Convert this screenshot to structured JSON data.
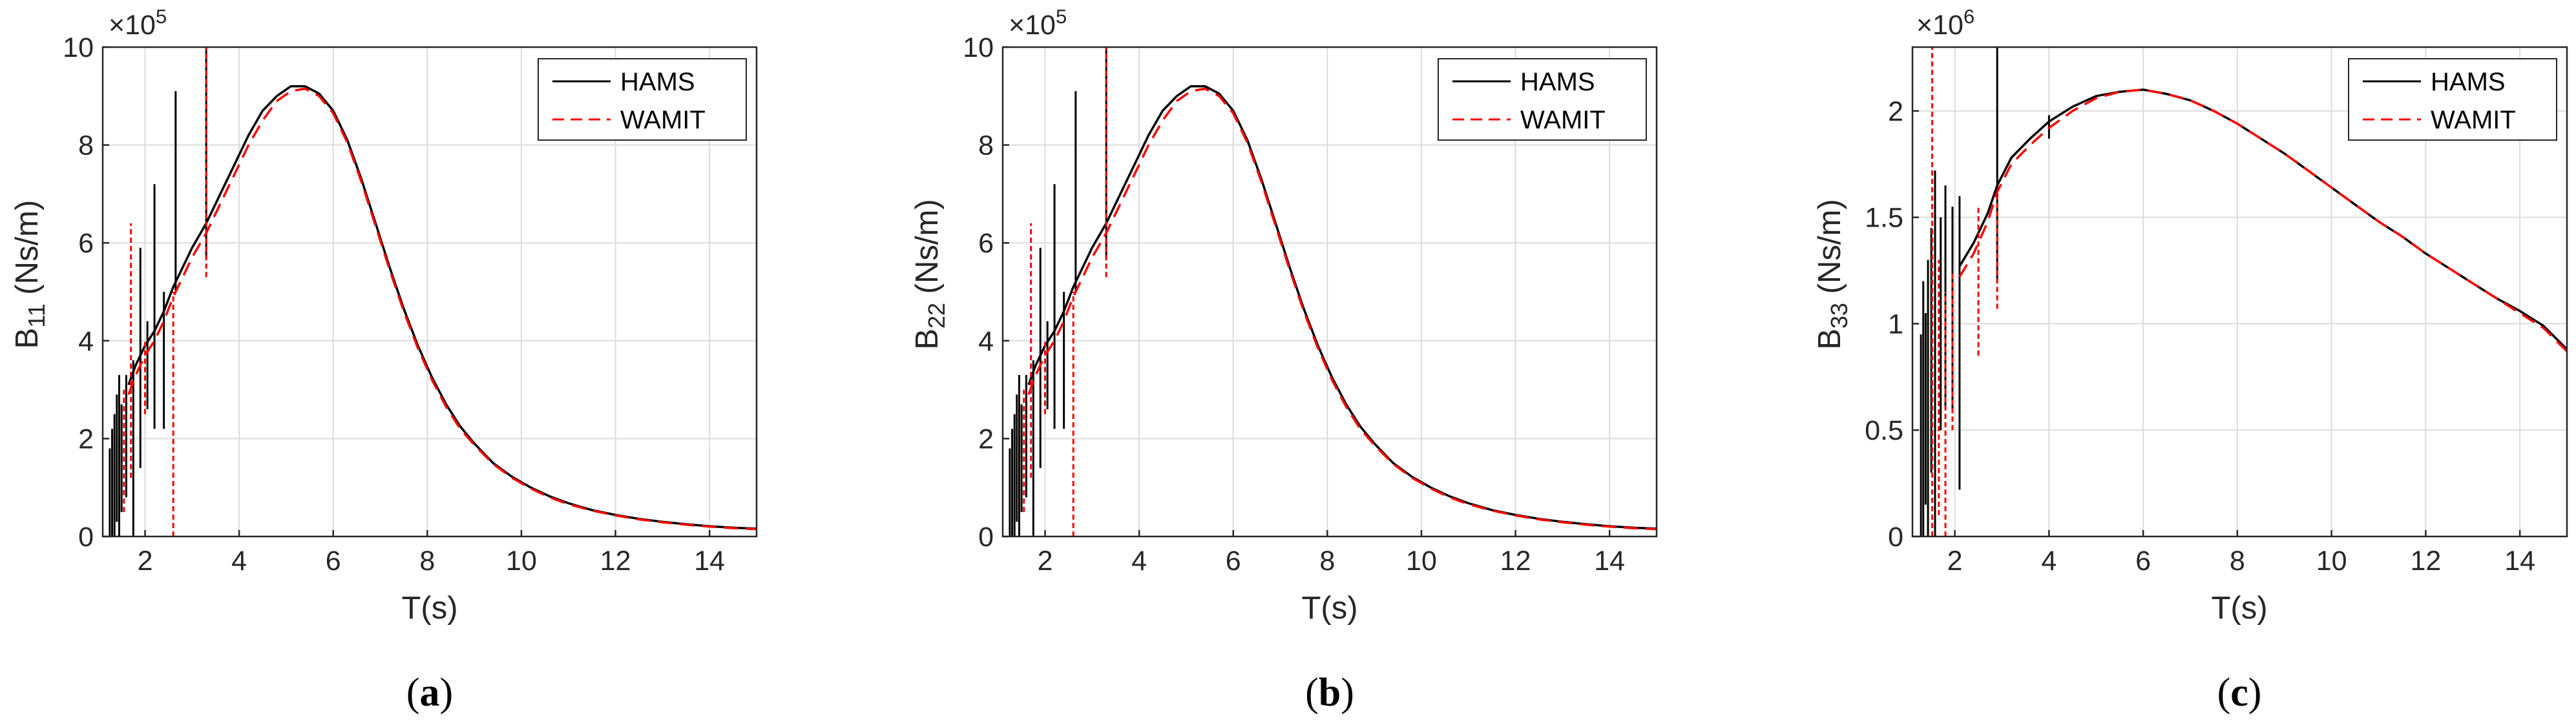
{
  "chart_data": [
    {
      "type": "line",
      "panel": "(a)",
      "caption_letter": "a",
      "ylabel_main": "B",
      "ylabel_sub": "11",
      "ylabel_unit": " (Ns/m)",
      "xlabel": "T(s)",
      "exponent_base": "×10",
      "exponent_power": "5",
      "xlim": [
        1.1,
        15
      ],
      "ylim": [
        0,
        10
      ],
      "xticks": [
        2,
        4,
        6,
        8,
        10,
        12,
        14
      ],
      "yticks": [
        0,
        2,
        4,
        6,
        8,
        10
      ],
      "ytick_labels": [
        "0",
        "2",
        "4",
        "6",
        "8",
        "10"
      ],
      "grid": true,
      "legend_position": "top-right",
      "series": [
        {
          "name": "HAMS",
          "color": "#000000",
          "dash": "solid",
          "x": [
            1.65,
            1.8,
            2.0,
            2.2,
            2.4,
            2.6,
            2.8,
            3.0,
            3.3,
            3.6,
            3.9,
            4.2,
            4.5,
            4.8,
            5.1,
            5.4,
            5.7,
            6.0,
            6.3,
            6.6,
            6.9,
            7.2,
            7.5,
            7.8,
            8.1,
            8.4,
            8.7,
            9.0,
            9.4,
            9.8,
            10.2,
            10.6,
            11.0,
            11.5,
            12.0,
            12.5,
            13.0,
            13.5,
            14.0,
            14.5,
            15.0
          ],
          "y": [
            3.1,
            3.5,
            3.9,
            4.2,
            4.6,
            5.1,
            5.5,
            5.9,
            6.4,
            7.0,
            7.6,
            8.2,
            8.7,
            9.0,
            9.2,
            9.2,
            9.05,
            8.7,
            8.1,
            7.3,
            6.4,
            5.5,
            4.65,
            3.9,
            3.25,
            2.7,
            2.25,
            1.9,
            1.5,
            1.22,
            1.0,
            0.82,
            0.68,
            0.54,
            0.44,
            0.36,
            0.3,
            0.25,
            0.21,
            0.18,
            0.16
          ],
          "spikes": [
            {
              "x": 1.25,
              "low": 0.0,
              "high": 1.8
            },
            {
              "x": 1.3,
              "low": 0.0,
              "high": 2.2
            },
            {
              "x": 1.35,
              "low": 0.0,
              "high": 2.5
            },
            {
              "x": 1.4,
              "low": 0.3,
              "high": 2.9
            },
            {
              "x": 1.45,
              "low": 0.0,
              "high": 3.3
            },
            {
              "x": 1.5,
              "low": 0.5,
              "high": 2.7
            },
            {
              "x": 1.6,
              "low": 0.8,
              "high": 3.3
            },
            {
              "x": 1.75,
              "low": 0.0,
              "high": 3.6
            },
            {
              "x": 1.9,
              "low": 1.4,
              "high": 5.9
            },
            {
              "x": 2.05,
              "low": 2.6,
              "high": 4.4
            },
            {
              "x": 2.2,
              "low": 2.2,
              "high": 7.2
            },
            {
              "x": 2.4,
              "low": 2.2,
              "high": 5.0
            },
            {
              "x": 2.65,
              "low": 5.0,
              "high": 9.1
            },
            {
              "x": 3.3,
              "low": 5.7,
              "high": 10.0
            }
          ]
        },
        {
          "name": "WAMIT",
          "color": "#ff0000",
          "dash": "dashed",
          "x": [
            1.65,
            1.8,
            2.0,
            2.2,
            2.4,
            2.6,
            2.8,
            3.0,
            3.3,
            3.6,
            3.9,
            4.2,
            4.5,
            4.8,
            5.1,
            5.4,
            5.7,
            6.0,
            6.3,
            6.6,
            6.9,
            7.2,
            7.5,
            7.8,
            8.1,
            8.4,
            8.7,
            9.0,
            9.4,
            9.8,
            10.2,
            10.6,
            11.0,
            11.5,
            12.0,
            12.5,
            13.0,
            13.5,
            14.0,
            14.5,
            15.0
          ],
          "y": [
            2.9,
            3.3,
            3.7,
            4.0,
            4.4,
            4.9,
            5.3,
            5.7,
            6.2,
            6.8,
            7.4,
            8.0,
            8.5,
            8.9,
            9.1,
            9.15,
            9.0,
            8.65,
            8.05,
            7.25,
            6.35,
            5.45,
            4.6,
            3.85,
            3.2,
            2.65,
            2.2,
            1.87,
            1.48,
            1.2,
            0.98,
            0.8,
            0.66,
            0.53,
            0.43,
            0.35,
            0.29,
            0.24,
            0.2,
            0.17,
            0.15
          ],
          "spikes": [
            {
              "x": 1.55,
              "low": 0.5,
              "high": 3.0
            },
            {
              "x": 1.7,
              "low": 1.2,
              "high": 6.4
            },
            {
              "x": 2.0,
              "low": 2.5,
              "high": 4.0
            },
            {
              "x": 2.6,
              "low": 0.0,
              "high": 5.0
            },
            {
              "x": 3.3,
              "low": 5.3,
              "high": 10.0
            }
          ]
        }
      ]
    },
    {
      "type": "line",
      "panel": "(b)",
      "caption_letter": "b",
      "ylabel_main": "B",
      "ylabel_sub": "22",
      "ylabel_unit": " (Ns/m)",
      "xlabel": "T(s)",
      "exponent_base": "×10",
      "exponent_power": "5",
      "xlim": [
        1.1,
        15
      ],
      "ylim": [
        0,
        10
      ],
      "xticks": [
        2,
        4,
        6,
        8,
        10,
        12,
        14
      ],
      "yticks": [
        0,
        2,
        4,
        6,
        8,
        10
      ],
      "ytick_labels": [
        "0",
        "2",
        "4",
        "6",
        "8",
        "10"
      ],
      "grid": true,
      "legend_position": "top-right",
      "series": [
        {
          "name": "HAMS",
          "color": "#000000",
          "dash": "solid",
          "x": [
            1.65,
            1.8,
            2.0,
            2.2,
            2.4,
            2.6,
            2.8,
            3.0,
            3.3,
            3.6,
            3.9,
            4.2,
            4.5,
            4.8,
            5.1,
            5.4,
            5.7,
            6.0,
            6.3,
            6.6,
            6.9,
            7.2,
            7.5,
            7.8,
            8.1,
            8.4,
            8.7,
            9.0,
            9.4,
            9.8,
            10.2,
            10.6,
            11.0,
            11.5,
            12.0,
            12.5,
            13.0,
            13.5,
            14.0,
            14.5,
            15.0
          ],
          "y": [
            3.1,
            3.5,
            3.9,
            4.2,
            4.6,
            5.1,
            5.5,
            5.9,
            6.4,
            7.0,
            7.6,
            8.2,
            8.7,
            9.0,
            9.2,
            9.2,
            9.05,
            8.7,
            8.1,
            7.3,
            6.4,
            5.5,
            4.65,
            3.9,
            3.25,
            2.7,
            2.25,
            1.9,
            1.5,
            1.22,
            1.0,
            0.82,
            0.68,
            0.54,
            0.44,
            0.36,
            0.3,
            0.25,
            0.21,
            0.18,
            0.16
          ],
          "spikes": [
            {
              "x": 1.25,
              "low": 0.0,
              "high": 1.8
            },
            {
              "x": 1.3,
              "low": 0.0,
              "high": 2.2
            },
            {
              "x": 1.35,
              "low": 0.0,
              "high": 2.5
            },
            {
              "x": 1.4,
              "low": 0.3,
              "high": 2.9
            },
            {
              "x": 1.45,
              "low": 0.0,
              "high": 3.3
            },
            {
              "x": 1.5,
              "low": 0.5,
              "high": 2.7
            },
            {
              "x": 1.6,
              "low": 0.8,
              "high": 3.3
            },
            {
              "x": 1.75,
              "low": 0.0,
              "high": 3.6
            },
            {
              "x": 1.9,
              "low": 1.4,
              "high": 5.9
            },
            {
              "x": 2.05,
              "low": 2.6,
              "high": 4.4
            },
            {
              "x": 2.2,
              "low": 2.2,
              "high": 7.2
            },
            {
              "x": 2.4,
              "low": 2.2,
              "high": 5.0
            },
            {
              "x": 2.65,
              "low": 5.0,
              "high": 9.1
            },
            {
              "x": 3.3,
              "low": 5.7,
              "high": 10.0
            }
          ]
        },
        {
          "name": "WAMIT",
          "color": "#ff0000",
          "dash": "dashed",
          "x": [
            1.65,
            1.8,
            2.0,
            2.2,
            2.4,
            2.6,
            2.8,
            3.0,
            3.3,
            3.6,
            3.9,
            4.2,
            4.5,
            4.8,
            5.1,
            5.4,
            5.7,
            6.0,
            6.3,
            6.6,
            6.9,
            7.2,
            7.5,
            7.8,
            8.1,
            8.4,
            8.7,
            9.0,
            9.4,
            9.8,
            10.2,
            10.6,
            11.0,
            11.5,
            12.0,
            12.5,
            13.0,
            13.5,
            14.0,
            14.5,
            15.0
          ],
          "y": [
            2.9,
            3.3,
            3.7,
            4.0,
            4.4,
            4.9,
            5.3,
            5.7,
            6.2,
            6.8,
            7.4,
            8.0,
            8.5,
            8.9,
            9.1,
            9.15,
            9.0,
            8.65,
            8.05,
            7.25,
            6.35,
            5.45,
            4.6,
            3.85,
            3.2,
            2.65,
            2.2,
            1.87,
            1.48,
            1.2,
            0.98,
            0.8,
            0.66,
            0.53,
            0.43,
            0.35,
            0.29,
            0.24,
            0.2,
            0.17,
            0.15
          ],
          "spikes": [
            {
              "x": 1.55,
              "low": 0.5,
              "high": 3.0
            },
            {
              "x": 1.7,
              "low": 1.2,
              "high": 6.4
            },
            {
              "x": 2.0,
              "low": 2.5,
              "high": 4.0
            },
            {
              "x": 2.6,
              "low": 0.0,
              "high": 5.0
            },
            {
              "x": 3.3,
              "low": 5.3,
              "high": 10.0
            }
          ]
        }
      ]
    },
    {
      "type": "line",
      "panel": "(c)",
      "caption_letter": "c",
      "ylabel_main": "B",
      "ylabel_sub": "33",
      "ylabel_unit": " (Ns/m)",
      "xlabel": "T(s)",
      "exponent_base": "×10",
      "exponent_power": "6",
      "xlim": [
        1.1,
        15
      ],
      "ylim": [
        0,
        2.3
      ],
      "xticks": [
        2,
        4,
        6,
        8,
        10,
        12,
        14
      ],
      "yticks": [
        0,
        0.5,
        1,
        1.5,
        2
      ],
      "ytick_labels": [
        "0",
        "0.5",
        "1",
        "1.5",
        "2"
      ],
      "grid": true,
      "legend_position": "top-right",
      "series": [
        {
          "name": "HAMS",
          "color": "#000000",
          "dash": "solid",
          "x": [
            2.1,
            2.4,
            2.7,
            2.9,
            3.2,
            3.6,
            4.0,
            4.5,
            5.0,
            5.5,
            6.0,
            6.5,
            7.0,
            7.5,
            8.0,
            8.5,
            9.0,
            9.5,
            10.0,
            10.5,
            11.0,
            11.5,
            12.0,
            12.5,
            13.0,
            13.5,
            14.0,
            14.5,
            15.0
          ],
          "y": [
            1.27,
            1.38,
            1.52,
            1.65,
            1.78,
            1.87,
            1.95,
            2.02,
            2.07,
            2.09,
            2.1,
            2.08,
            2.05,
            2.0,
            1.94,
            1.87,
            1.8,
            1.72,
            1.64,
            1.56,
            1.48,
            1.41,
            1.33,
            1.26,
            1.19,
            1.12,
            1.06,
            0.99,
            0.88
          ],
          "spikes": [
            {
              "x": 1.28,
              "low": 0.0,
              "high": 0.95
            },
            {
              "x": 1.33,
              "low": 0.0,
              "high": 1.2
            },
            {
              "x": 1.38,
              "low": 0.15,
              "high": 1.05
            },
            {
              "x": 1.43,
              "low": 0.0,
              "high": 1.3
            },
            {
              "x": 1.5,
              "low": 0.3,
              "high": 1.45
            },
            {
              "x": 1.58,
              "low": 0.0,
              "high": 1.72
            },
            {
              "x": 1.7,
              "low": 0.5,
              "high": 1.5
            },
            {
              "x": 1.8,
              "low": 0.6,
              "high": 1.65
            },
            {
              "x": 1.95,
              "low": 0.6,
              "high": 1.55
            },
            {
              "x": 2.1,
              "low": 0.22,
              "high": 1.6
            },
            {
              "x": 2.9,
              "low": 1.2,
              "high": 2.3
            },
            {
              "x": 4.0,
              "low": 1.87,
              "high": 1.98
            }
          ]
        },
        {
          "name": "WAMIT",
          "color": "#ff0000",
          "dash": "dashed",
          "x": [
            2.1,
            2.4,
            2.7,
            2.9,
            3.2,
            3.6,
            4.0,
            4.5,
            5.0,
            5.5,
            6.0,
            6.5,
            7.0,
            7.5,
            8.0,
            8.5,
            9.0,
            9.5,
            10.0,
            10.5,
            11.0,
            11.5,
            12.0,
            12.5,
            13.0,
            13.5,
            14.0,
            14.5,
            15.0
          ],
          "y": [
            1.22,
            1.33,
            1.48,
            1.62,
            1.75,
            1.84,
            1.92,
            2.0,
            2.06,
            2.09,
            2.1,
            2.08,
            2.05,
            2.0,
            1.94,
            1.87,
            1.8,
            1.72,
            1.64,
            1.56,
            1.48,
            1.41,
            1.33,
            1.26,
            1.19,
            1.12,
            1.05,
            0.98,
            0.87
          ],
          "spikes": [
            {
              "x": 1.52,
              "low": 0.0,
              "high": 2.3
            },
            {
              "x": 1.66,
              "low": 0.1,
              "high": 1.3
            },
            {
              "x": 1.8,
              "low": 0.0,
              "high": 1.15
            },
            {
              "x": 1.95,
              "low": 0.5,
              "high": 1.25
            },
            {
              "x": 2.5,
              "low": 0.85,
              "high": 1.55
            },
            {
              "x": 2.9,
              "low": 1.07,
              "high": 1.6
            }
          ]
        }
      ]
    }
  ]
}
